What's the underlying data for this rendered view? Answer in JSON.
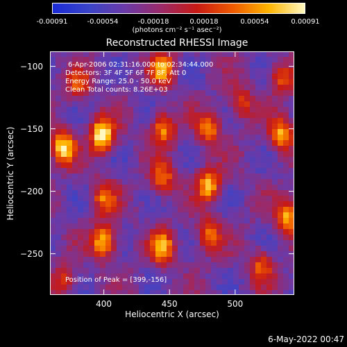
{
  "colorbar": {
    "ticks": [
      "-0.00091",
      "-0.00054",
      "-0.00018",
      "0.00018",
      "0.00054",
      "0.00091"
    ],
    "units": "(photons cm⁻² s⁻¹ asec⁻²)",
    "colors": [
      "#1a2bd6",
      "#3a44c8",
      "#6a3aa8",
      "#9a2a6a",
      "#c81a14",
      "#ee5a00",
      "#ffb400",
      "#fff8c0"
    ]
  },
  "info": {
    "time": "6-Apr-2006 02:31:16.000 to 02:34:44.000",
    "detectors": "Detectors: 3F 4F 5F 6F 7F 8F, Att 0",
    "energy": "Energy Range: 25.0 - 50.0 keV",
    "clean": "Clean    Total counts: 8.26E+03",
    "peak": "Position of Peak = [399,-156]"
  },
  "footer": {
    "date": "6-May-2022 00:47"
  },
  "chart_data": {
    "type": "heatmap",
    "title": "Reconstructed RHESSI Image",
    "xlabel": "Heliocentric X (arcsec)",
    "ylabel": "Heliocentric Y (arcsec)",
    "xlim": [
      359,
      545
    ],
    "ylim": [
      -283,
      -88
    ],
    "xticks": [
      400,
      450,
      500
    ],
    "yticks": [
      -100,
      -150,
      -200,
      -250
    ],
    "peak": [
      399,
      -156
    ],
    "sources": [
      {
        "x": 399,
        "y": -155,
        "amp": 1.0
      },
      {
        "x": 369,
        "y": -165,
        "amp": 0.85
      },
      {
        "x": 400,
        "y": -240,
        "amp": 0.8
      },
      {
        "x": 400,
        "y": -205,
        "amp": 0.55
      },
      {
        "x": 445,
        "y": -102,
        "amp": 0.7
      },
      {
        "x": 445,
        "y": -150,
        "amp": 0.65
      },
      {
        "x": 445,
        "y": -190,
        "amp": 0.55
      },
      {
        "x": 445,
        "y": -245,
        "amp": 0.7
      },
      {
        "x": 480,
        "y": -150,
        "amp": 0.6
      },
      {
        "x": 480,
        "y": -195,
        "amp": 0.75
      },
      {
        "x": 480,
        "y": -235,
        "amp": 0.55
      },
      {
        "x": 535,
        "y": -110,
        "amp": 0.5
      },
      {
        "x": 535,
        "y": -155,
        "amp": 0.7
      },
      {
        "x": 540,
        "y": -220,
        "amp": 0.75
      },
      {
        "x": 520,
        "y": -260,
        "amp": 0.5
      },
      {
        "x": 380,
        "y": -115,
        "amp": 0.45
      },
      {
        "x": 370,
        "y": -270,
        "amp": 0.4
      },
      {
        "x": 505,
        "y": -130,
        "amp": 0.45
      }
    ]
  }
}
